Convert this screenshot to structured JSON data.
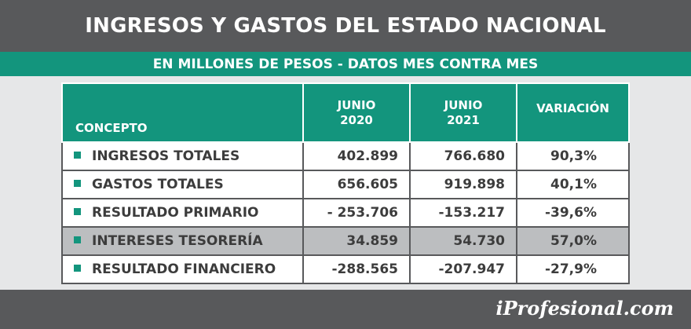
{
  "header": {
    "title": "INGRESOS Y GASTOS DEL ESTADO NACIONAL",
    "subtitle": "EN MILLONES DE PESOS - DATOS MES CONTRA MES"
  },
  "table": {
    "columns": {
      "concept": "CONCEPTO",
      "col1_line1": "JUNIO",
      "col1_line2": "2020",
      "col2_line1": "JUNIO",
      "col2_line2": "2021",
      "variation": "VARIACIÓN"
    },
    "rows": [
      {
        "concept": "INGRESOS TOTALES",
        "v2020": "402.899",
        "v2021": "766.680",
        "variation": "90,3%"
      },
      {
        "concept": "GASTOS TOTALES",
        "v2020": "656.605",
        "v2021": "919.898",
        "variation": "40,1%"
      },
      {
        "concept": "RESULTADO PRIMARIO",
        "v2020": "- 253.706",
        "v2021": "-153.217",
        "variation": "-39,6%"
      },
      {
        "concept": "INTERESES TESORERÍA",
        "v2020": "34.859",
        "v2021": "54.730",
        "variation": "57,0%"
      },
      {
        "concept": "RESULTADO FINANCIERO",
        "v2020": "-288.565",
        "v2021": "-207.947",
        "variation": "-27,9%"
      }
    ],
    "highlighted_row": 3
  },
  "footer": {
    "logo_text": "iProfesional.com"
  },
  "colors": {
    "dark_gray": "#58595b",
    "teal": "#13957d",
    "background": "#e6e7e8",
    "highlight": "#bcbec0"
  }
}
